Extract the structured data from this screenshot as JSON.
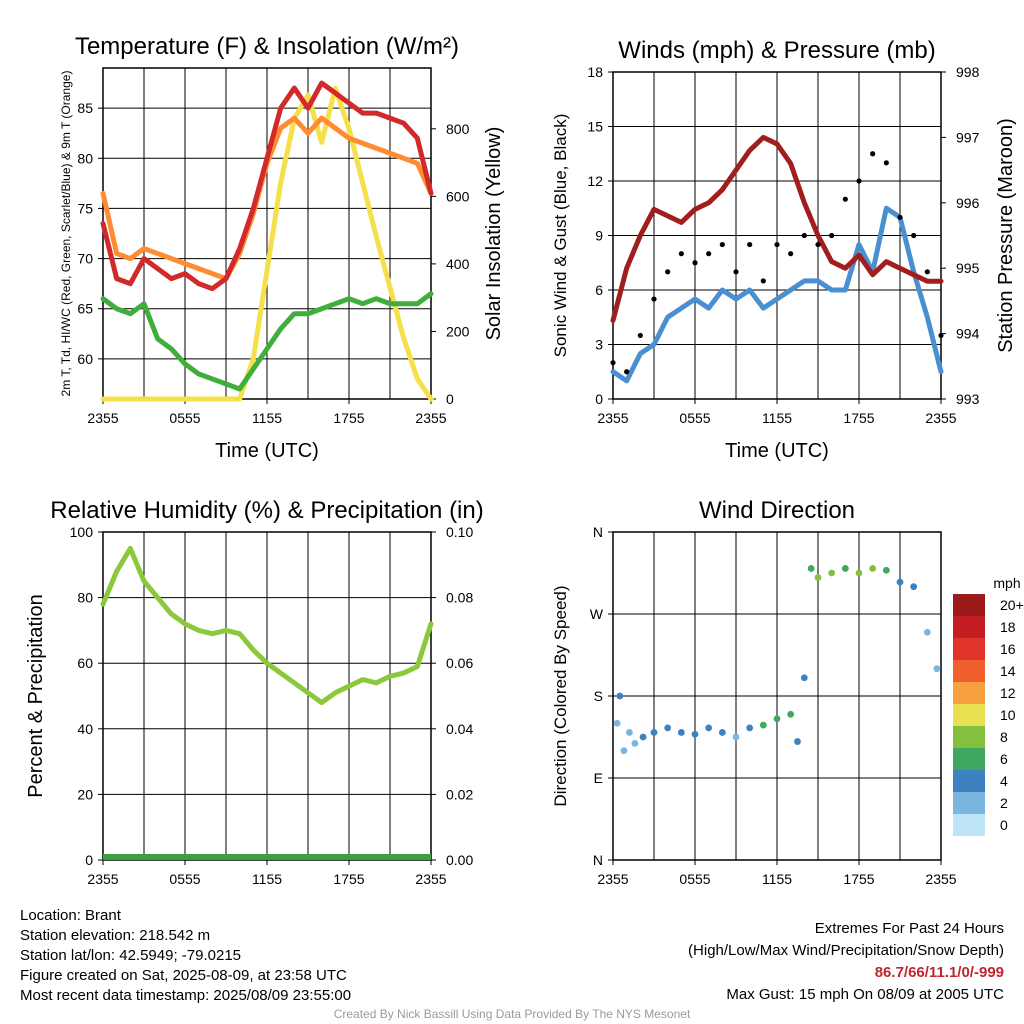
{
  "chart_data": [
    {
      "type": "line",
      "title": "Temperature (F) & Insolation (W/m²)",
      "xlabel": "Time (UTC)",
      "ylabel": "2m T, Td, HI/WC (Red, Green, Scarlet/Blue) & 9m T (Orange)",
      "ylabel_right": "Solar Insolation (Yellow)",
      "x_ticks": [
        "2355",
        "0555",
        "1155",
        "1755",
        "2355"
      ],
      "ylim": [
        56,
        89
      ],
      "yticks": [
        60,
        65,
        70,
        75,
        80,
        85
      ],
      "ylim_right": [
        0,
        980
      ],
      "yticks_right": [
        0,
        200,
        400,
        600,
        800
      ],
      "series": [
        {
          "color": "#d22a2a",
          "x": [
            0,
            1,
            2,
            3,
            4,
            5,
            6,
            7,
            8,
            9,
            10,
            11,
            12,
            13,
            14,
            15,
            16,
            17,
            18,
            19,
            20,
            21,
            22,
            23,
            24
          ],
          "values": [
            73.5,
            68,
            67.5,
            70,
            69,
            68,
            68.5,
            67.5,
            67,
            68,
            71,
            75,
            80,
            85,
            87,
            85,
            87.5,
            86.5,
            85.5,
            84.5,
            84.5,
            84,
            83.5,
            82,
            76.5
          ]
        },
        {
          "color": "#ff8c33",
          "x": [
            0,
            1,
            2,
            3,
            4,
            5,
            6,
            7,
            8,
            9,
            10,
            11,
            12,
            13,
            14,
            15,
            16,
            17,
            18,
            19,
            20,
            21,
            22,
            23,
            24
          ],
          "values": [
            76.5,
            70.5,
            70,
            71,
            70.5,
            70,
            69.5,
            69,
            68.5,
            68,
            70.5,
            74.5,
            79.5,
            83,
            84,
            82.5,
            84,
            83,
            82,
            81.5,
            81,
            80.5,
            80,
            79.5,
            76.5
          ]
        },
        {
          "color": "#3fae3a",
          "x": [
            0,
            1,
            2,
            3,
            4,
            5,
            6,
            7,
            8,
            9,
            10,
            11,
            12,
            13,
            14,
            15,
            16,
            17,
            18,
            19,
            20,
            21,
            22,
            23,
            24
          ],
          "values": [
            66,
            65,
            64.5,
            65.5,
            62,
            61,
            59.5,
            58.5,
            58,
            57.5,
            57,
            59,
            61,
            63,
            64.5,
            64.5,
            65,
            65.5,
            66,
            65.5,
            66,
            65.5,
            65.5,
            65.5,
            66.5
          ]
        },
        {
          "color": "#f6e04a",
          "axis": "right",
          "x": [
            0,
            1,
            2,
            3,
            4,
            5,
            6,
            7,
            8,
            9,
            10,
            11,
            12,
            13,
            14,
            15,
            16,
            17,
            18,
            19,
            20,
            21,
            22,
            23,
            24
          ],
          "values": [
            0,
            0,
            0,
            0,
            0,
            0,
            0,
            0,
            0,
            0,
            0,
            120,
            380,
            640,
            830,
            900,
            760,
            920,
            800,
            640,
            480,
            330,
            180,
            60,
            0
          ]
        }
      ]
    },
    {
      "type": "line",
      "title": "Winds (mph) & Pressure (mb)",
      "xlabel": "Time (UTC)",
      "ylabel": "Sonic Wind & Gust (Blue, Black)",
      "ylabel_right": "Station Pressure (Maroon)",
      "x_ticks": [
        "2355",
        "0555",
        "1155",
        "1755",
        "2355"
      ],
      "ylim": [
        0,
        18
      ],
      "yticks": [
        0,
        3,
        6,
        9,
        12,
        15,
        18
      ],
      "ylim_right": [
        993,
        998
      ],
      "yticks_right": [
        993,
        994,
        995,
        996,
        997,
        998
      ],
      "series": [
        {
          "color": "#4a90d0",
          "x": [
            0,
            1,
            2,
            3,
            4,
            5,
            6,
            7,
            8,
            9,
            10,
            11,
            12,
            13,
            14,
            15,
            16,
            17,
            18,
            19,
            20,
            21,
            22,
            23,
            24
          ],
          "values": [
            1.5,
            1,
            2.5,
            3,
            4.5,
            5,
            5.5,
            5,
            6,
            5.5,
            6,
            5,
            5.5,
            6,
            6.5,
            6.5,
            6,
            6,
            8.5,
            7,
            10.5,
            10,
            7,
            4.5,
            1.5
          ]
        },
        {
          "color": "#000000",
          "style": "dots",
          "x": [
            0,
            1,
            2,
            3,
            4,
            5,
            6,
            7,
            8,
            9,
            10,
            11,
            12,
            13,
            14,
            15,
            16,
            17,
            18,
            19,
            20,
            21,
            22,
            23,
            24
          ],
          "values": [
            2,
            1.5,
            3.5,
            5.5,
            7,
            8,
            7.5,
            8,
            8.5,
            7,
            8.5,
            6.5,
            8.5,
            8,
            9,
            8.5,
            9,
            11,
            12,
            13.5,
            13,
            10,
            9,
            7,
            3.5
          ]
        },
        {
          "color": "#a01e1e",
          "axis": "right",
          "x": [
            0,
            1,
            2,
            3,
            4,
            5,
            6,
            7,
            8,
            9,
            10,
            11,
            12,
            13,
            14,
            15,
            16,
            17,
            18,
            19,
            20,
            21,
            22,
            23,
            24
          ],
          "values": [
            994.2,
            995,
            995.5,
            995.9,
            995.8,
            995.7,
            995.9,
            996.0,
            996.2,
            996.5,
            996.8,
            997.0,
            996.9,
            996.6,
            996.0,
            995.5,
            995.1,
            995.0,
            995.2,
            994.9,
            995.1,
            995.0,
            994.9,
            994.8,
            994.8
          ]
        }
      ]
    },
    {
      "type": "line",
      "title": "Relative Humidity (%) & Precipitation (in)",
      "ylabel": "Percent & Precipitation",
      "x_ticks": [
        "2355",
        "0555",
        "1155",
        "1755",
        "2355"
      ],
      "ylim": [
        0,
        100
      ],
      "yticks": [
        0,
        20,
        40,
        60,
        80,
        100
      ],
      "ylim_right": [
        0,
        0.1
      ],
      "yticks_right": [
        "0.00",
        "0.02",
        "0.04",
        "0.06",
        "0.08",
        "0.10"
      ],
      "series": [
        {
          "color": "#8cc83c",
          "x": [
            0,
            1,
            2,
            3,
            4,
            5,
            6,
            7,
            8,
            9,
            10,
            11,
            12,
            13,
            14,
            15,
            16,
            17,
            18,
            19,
            20,
            21,
            22,
            23,
            24
          ],
          "values": [
            78,
            88,
            95,
            85,
            80,
            75,
            72,
            70,
            69,
            70,
            69,
            64,
            60,
            57,
            54,
            51,
            48,
            51,
            53,
            55,
            54,
            56,
            57,
            59,
            72
          ]
        },
        {
          "color": "#3aa040",
          "axis": "right",
          "x": [
            0,
            24
          ],
          "values": [
            0,
            0
          ]
        }
      ]
    },
    {
      "type": "scatter",
      "title": "Wind Direction",
      "ylabel": "Direction (Colored By Speed)",
      "x_ticks": [
        "2355",
        "0555",
        "1155",
        "1755",
        "2355"
      ],
      "yticks": [
        "N",
        "E",
        "S",
        "W",
        "N"
      ],
      "ylim": [
        0,
        360
      ],
      "legend_title": "mph",
      "legend_labels": [
        "20+",
        "18",
        "16",
        "14",
        "12",
        "10",
        "8",
        "6",
        "4",
        "2",
        "0"
      ],
      "legend_colors": [
        "#9b1b1b",
        "#c41e24",
        "#e0342c",
        "#f0602c",
        "#f6a040",
        "#e8e050",
        "#84c040",
        "#3fa860",
        "#3d82c0",
        "#7ab6e0",
        "#bfe4f6"
      ],
      "points": [
        {
          "x": 0.3,
          "dir": 150,
          "speed": 2
        },
        {
          "x": 0.5,
          "dir": 180,
          "speed": 3
        },
        {
          "x": 0.8,
          "dir": 120,
          "speed": 1
        },
        {
          "x": 1.2,
          "dir": 140,
          "speed": 1
        },
        {
          "x": 1.6,
          "dir": 128,
          "speed": 2
        },
        {
          "x": 2.2,
          "dir": 135,
          "speed": 3
        },
        {
          "x": 3,
          "dir": 140,
          "speed": 4
        },
        {
          "x": 4,
          "dir": 145,
          "speed": 4
        },
        {
          "x": 5,
          "dir": 140,
          "speed": 3
        },
        {
          "x": 6,
          "dir": 138,
          "speed": 4
        },
        {
          "x": 7,
          "dir": 145,
          "speed": 4
        },
        {
          "x": 8,
          "dir": 140,
          "speed": 3
        },
        {
          "x": 9,
          "dir": 135,
          "speed": 2
        },
        {
          "x": 10,
          "dir": 145,
          "speed": 4
        },
        {
          "x": 11,
          "dir": 148,
          "speed": 5
        },
        {
          "x": 12,
          "dir": 155,
          "speed": 6
        },
        {
          "x": 13,
          "dir": 160,
          "speed": 5
        },
        {
          "x": 13.5,
          "dir": 130,
          "speed": 3
        },
        {
          "x": 14,
          "dir": 200,
          "speed": 4
        },
        {
          "x": 14.5,
          "dir": 320,
          "speed": 6
        },
        {
          "x": 15,
          "dir": 310,
          "speed": 8
        },
        {
          "x": 16,
          "dir": 315,
          "speed": 7
        },
        {
          "x": 17,
          "dir": 320,
          "speed": 6
        },
        {
          "x": 18,
          "dir": 315,
          "speed": 7
        },
        {
          "x": 19,
          "dir": 320,
          "speed": 7
        },
        {
          "x": 20,
          "dir": 318,
          "speed": 6
        },
        {
          "x": 21,
          "dir": 305,
          "speed": 4
        },
        {
          "x": 22,
          "dir": 300,
          "speed": 3
        },
        {
          "x": 23,
          "dir": 250,
          "speed": 2
        },
        {
          "x": 23.7,
          "dir": 210,
          "speed": 2
        }
      ]
    }
  ],
  "footer": {
    "location": "Location: Brant",
    "elevation": "Station elevation: 218.542 m",
    "latlon": "Station lat/lon: 42.5949; -79.0215",
    "created": "Figure created on Sat, 2025-08-09, at 23:58 UTC",
    "recent": "Most recent data timestamp: 2025/08/09 23:55:00",
    "extremes_title": "Extremes For Past 24 Hours",
    "extremes_sub": "(High/Low/Max Wind/Precipitation/Snow Depth)",
    "extremes_values": "86.7/66/11.1/0/-999",
    "max_gust": "Max Gust: 15 mph On 08/09 at 2005 UTC",
    "credit": "Created By Nick Bassill Using Data Provided By The NYS Mesonet"
  }
}
